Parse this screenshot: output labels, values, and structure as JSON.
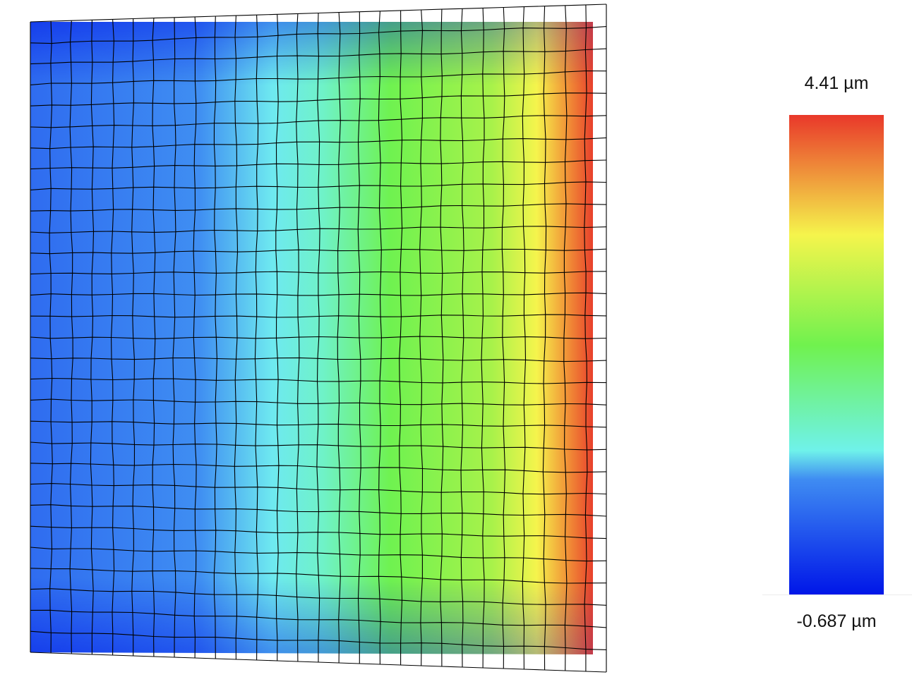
{
  "legend": {
    "max_label": "4.41 µm",
    "min_label": "-0.687 µm",
    "max_value": 4.41,
    "min_value": -0.687,
    "unit": "µm",
    "colormap": [
      {
        "stop": 0.0,
        "color": "#0016e8"
      },
      {
        "stop": 0.24,
        "color": "#3f8cf2"
      },
      {
        "stop": 0.3,
        "color": "#6ff2ea"
      },
      {
        "stop": 0.52,
        "color": "#70f24e"
      },
      {
        "stop": 0.75,
        "color": "#f5f44c"
      },
      {
        "stop": 1.0,
        "color": "#e9382a"
      }
    ]
  },
  "mesh": {
    "columns": 28,
    "rows": 30,
    "line_color": "#000000",
    "background_color": "#ffffff"
  }
}
